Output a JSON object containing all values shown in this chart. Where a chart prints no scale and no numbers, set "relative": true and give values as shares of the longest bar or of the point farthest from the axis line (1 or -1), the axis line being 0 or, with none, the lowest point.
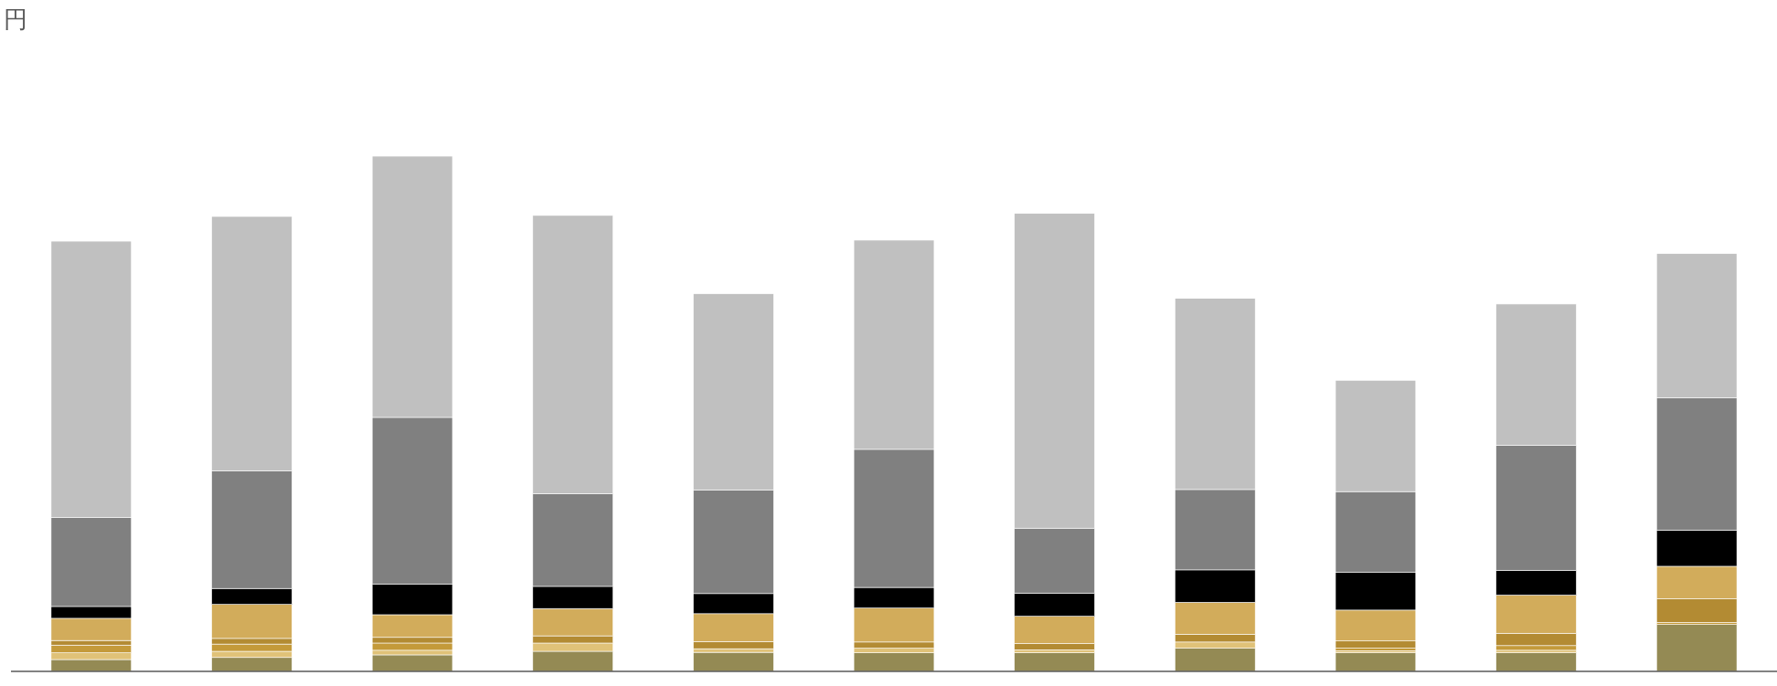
{
  "chart_data": {
    "type": "bar",
    "stacked": true,
    "relative": true,
    "title": "円",
    "categories": [
      null,
      null,
      null,
      null,
      null,
      null,
      null,
      null,
      null,
      null,
      null
    ],
    "series": [
      {
        "color": "#948a54",
        "values": [
          0.023,
          0.027,
          0.032,
          0.039,
          0.037,
          0.036,
          0.036,
          0.045,
          0.036,
          0.036,
          0.091
        ]
      },
      {
        "color": "#e0c278",
        "values": [
          0.013,
          0.012,
          0.009,
          0.016,
          0.007,
          0.009,
          0.006,
          0.012,
          0.004,
          0.005,
          null
        ]
      },
      {
        "color": "#c49a3a",
        "values": [
          0.015,
          0.014,
          0.014,
          0,
          0,
          0,
          0,
          0,
          0.005,
          0.009,
          0.004
        ]
      },
      {
        "color": "#b38b33",
        "values": [
          0.009,
          0.011,
          0.011,
          0.014,
          0.014,
          0.012,
          0.012,
          0.015,
          0.014,
          0.024,
          0.046
        ]
      },
      {
        "color": "#d2ac5b",
        "values": [
          0.043,
          0.066,
          0.044,
          0.053,
          0.054,
          0.066,
          0.053,
          0.062,
          0.06,
          0.074,
          0.063
        ]
      },
      {
        "color": "#000000",
        "values": [
          0.023,
          0.031,
          0.059,
          0.043,
          0.039,
          0.04,
          0.045,
          0.063,
          0.073,
          0.048,
          0.07
        ]
      },
      {
        "color": "#808080",
        "values": [
          0.173,
          0.228,
          0.324,
          0.18,
          0.201,
          0.268,
          0.126,
          0.156,
          0.157,
          0.243,
          0.257
        ]
      },
      {
        "color": "#c0c0c0",
        "values": [
          0.536,
          0.494,
          0.507,
          0.54,
          0.381,
          0.406,
          0.611,
          0.371,
          0.216,
          0.274,
          0.28
        ]
      }
    ]
  }
}
